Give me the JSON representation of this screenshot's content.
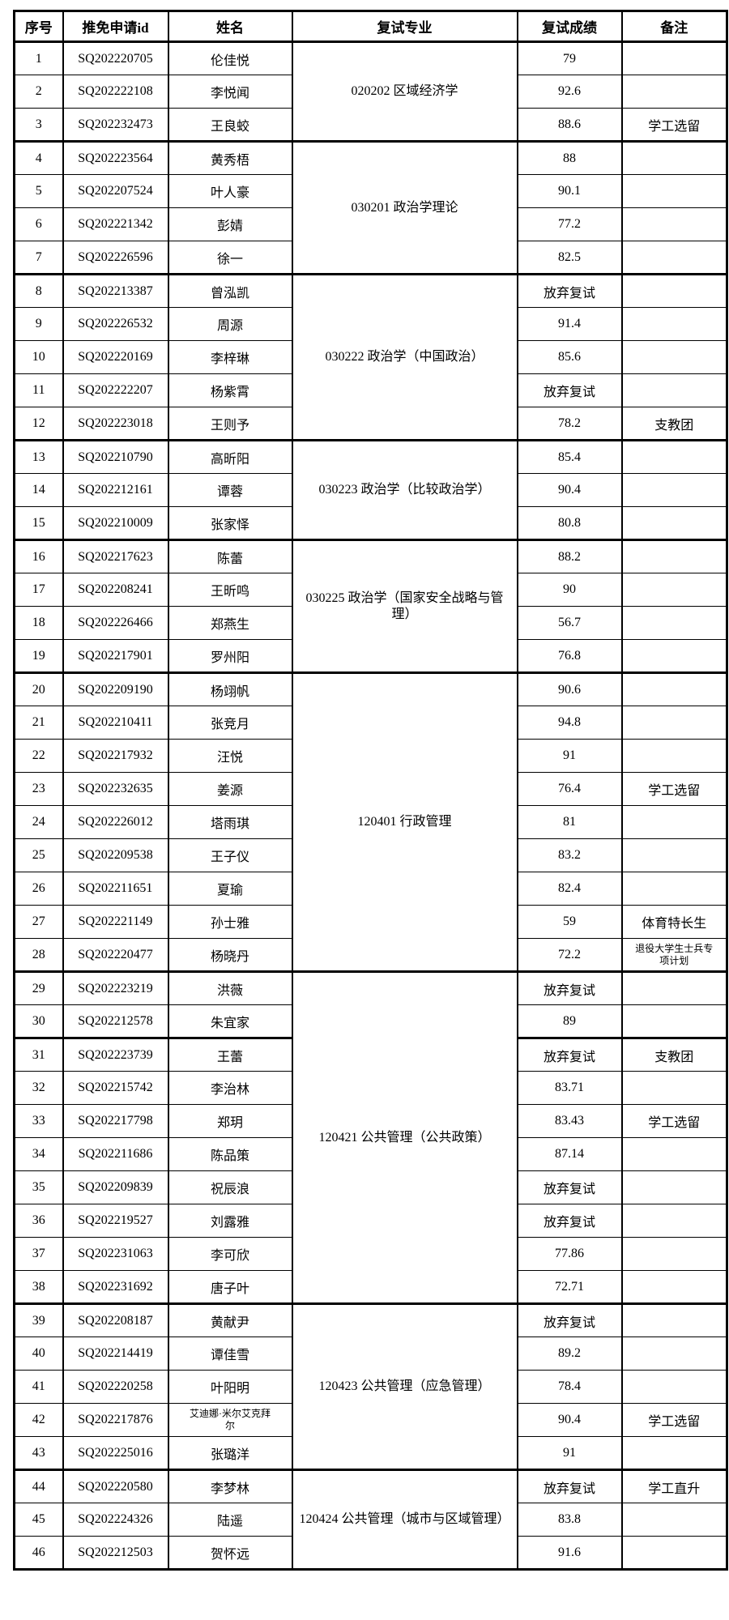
{
  "document": {
    "type": "admission-review-results-table",
    "colors": {
      "border": "#000000",
      "text": "#000000",
      "background": "#ffffff"
    }
  },
  "table": {
    "headers": [
      "序号",
      "推免申请id",
      "姓名",
      "复试专业",
      "复试成绩",
      "备注"
    ],
    "abandoned_label": "放弃复试",
    "groups": [
      {
        "major": "020202 区域经济学",
        "rows": [
          {
            "no": "1",
            "id": "SQ202220705",
            "name": "伦佳悦",
            "score": "79",
            "note": ""
          },
          {
            "no": "2",
            "id": "SQ202222108",
            "name": "李悦闻",
            "score": "92.6",
            "note": ""
          },
          {
            "no": "3",
            "id": "SQ202232473",
            "name": "王良蛟",
            "score": "88.6",
            "note": "学工选留"
          }
        ]
      },
      {
        "major": "030201 政治学理论",
        "rows": [
          {
            "no": "4",
            "id": "SQ202223564",
            "name": "黄秀梧",
            "score": "88",
            "note": ""
          },
          {
            "no": "5",
            "id": "SQ202207524",
            "name": "叶人豪",
            "score": "90.1",
            "note": ""
          },
          {
            "no": "6",
            "id": "SQ202221342",
            "name": "彭婧",
            "score": "77.2",
            "note": ""
          },
          {
            "no": "7",
            "id": "SQ202226596",
            "name": "徐一",
            "score": "82.5",
            "note": ""
          }
        ]
      },
      {
        "major": "030222 政治学（中国政治）",
        "rows": [
          {
            "no": "8",
            "id": "SQ202213387",
            "name": "曾泓凯",
            "score": "放弃复试",
            "note": ""
          },
          {
            "no": "9",
            "id": "SQ202226532",
            "name": "周源",
            "score": "91.4",
            "note": ""
          },
          {
            "no": "10",
            "id": "SQ202220169",
            "name": "李梓琳",
            "score": "85.6",
            "note": ""
          },
          {
            "no": "11",
            "id": "SQ202222207",
            "name": "杨紫霄",
            "score": "放弃复试",
            "note": ""
          },
          {
            "no": "12",
            "id": "SQ202223018",
            "name": "王则予",
            "score": "78.2",
            "note": "支教团"
          }
        ]
      },
      {
        "major": "030223 政治学（比较政治学）",
        "rows": [
          {
            "no": "13",
            "id": "SQ202210790",
            "name": "高昕阳",
            "score": "85.4",
            "note": ""
          },
          {
            "no": "14",
            "id": "SQ202212161",
            "name": "谭蓉",
            "score": "90.4",
            "note": ""
          },
          {
            "no": "15",
            "id": "SQ202210009",
            "name": "张家怿",
            "score": "80.8",
            "note": ""
          }
        ]
      },
      {
        "major": "030225 政治学（国家安全战略与管理）",
        "rows": [
          {
            "no": "16",
            "id": "SQ202217623",
            "name": "陈蕾",
            "score": "88.2",
            "note": ""
          },
          {
            "no": "17",
            "id": "SQ202208241",
            "name": "王昕鸣",
            "score": "90",
            "note": ""
          },
          {
            "no": "18",
            "id": "SQ202226466",
            "name": "郑燕生",
            "score": "56.7",
            "note": ""
          },
          {
            "no": "19",
            "id": "SQ202217901",
            "name": "罗州阳",
            "score": "76.8",
            "note": ""
          }
        ]
      },
      {
        "major": "120401 行政管理",
        "rows": [
          {
            "no": "20",
            "id": "SQ202209190",
            "name": "杨翊帆",
            "score": "90.6",
            "note": ""
          },
          {
            "no": "21",
            "id": "SQ202210411",
            "name": "张竞月",
            "score": "94.8",
            "note": ""
          },
          {
            "no": "22",
            "id": "SQ202217932",
            "name": "汪悦",
            "score": "91",
            "note": ""
          },
          {
            "no": "23",
            "id": "SQ202232635",
            "name": "姜源",
            "score": "76.4",
            "note": "学工选留"
          },
          {
            "no": "24",
            "id": "SQ202226012",
            "name": "塔雨琪",
            "score": "81",
            "note": ""
          },
          {
            "no": "25",
            "id": "SQ202209538",
            "name": "王子仪",
            "score": "83.2",
            "note": ""
          },
          {
            "no": "26",
            "id": "SQ202211651",
            "name": "夏瑜",
            "score": "82.4",
            "note": ""
          },
          {
            "no": "27",
            "id": "SQ202221149",
            "name": "孙士雅",
            "score": "59",
            "note": "体育特长生"
          },
          {
            "no": "28",
            "id": "SQ202220477",
            "name": "杨晓丹",
            "score": "72.2",
            "note": "退役大学生士兵专项计划"
          }
        ]
      },
      {
        "major": "120421 公共管理（公共政策）",
        "rows": [
          {
            "no": "29",
            "id": "SQ202223219",
            "name": "洪薇",
            "score": "放弃复试",
            "note": ""
          },
          {
            "no": "30",
            "id": "SQ202212578",
            "name": "朱宜家",
            "score": "89",
            "note": ""
          },
          {
            "no": "31",
            "id": "SQ202223739",
            "name": "王蕾",
            "score": "放弃复试",
            "note": "支教团"
          },
          {
            "no": "32",
            "id": "SQ202215742",
            "name": "李治林",
            "score": "83.71",
            "note": ""
          },
          {
            "no": "33",
            "id": "SQ202217798",
            "name": "郑玥",
            "score": "83.43",
            "note": "学工选留"
          },
          {
            "no": "34",
            "id": "SQ202211686",
            "name": "陈品策",
            "score": "87.14",
            "note": ""
          },
          {
            "no": "35",
            "id": "SQ202209839",
            "name": "祝辰浪",
            "score": "放弃复试",
            "note": ""
          },
          {
            "no": "36",
            "id": "SQ202219527",
            "name": "刘露雅",
            "score": "放弃复试",
            "note": ""
          },
          {
            "no": "37",
            "id": "SQ202231063",
            "name": "李可欣",
            "score": "77.86",
            "note": ""
          },
          {
            "no": "38",
            "id": "SQ202231692",
            "name": "唐子叶",
            "score": "72.71",
            "note": ""
          }
        ]
      },
      {
        "major": "120423 公共管理（应急管理）",
        "rows": [
          {
            "no": "39",
            "id": "SQ202208187",
            "name": "黄献尹",
            "score": "放弃复试",
            "note": ""
          },
          {
            "no": "40",
            "id": "SQ202214419",
            "name": "谭佳雪",
            "score": "89.2",
            "note": ""
          },
          {
            "no": "41",
            "id": "SQ202220258",
            "name": "叶阳明",
            "score": "78.4",
            "note": ""
          },
          {
            "no": "42",
            "id": "SQ202217876",
            "name": "艾迪娜·米尔艾克拜尔",
            "score": "90.4",
            "note": "学工选留"
          },
          {
            "no": "43",
            "id": "SQ202225016",
            "name": "张璐洋",
            "score": "91",
            "note": ""
          }
        ]
      },
      {
        "major": "120424 公共管理（城市与区域管理）",
        "rows": [
          {
            "no": "44",
            "id": "SQ202220580",
            "name": "李梦林",
            "score": "放弃复试",
            "note": "学工直升"
          },
          {
            "no": "45",
            "id": "SQ202224326",
            "name": "陆遥",
            "score": "83.8",
            "note": ""
          },
          {
            "no": "46",
            "id": "SQ202212503",
            "name": "贺怀远",
            "score": "91.6",
            "note": ""
          }
        ]
      }
    ]
  }
}
